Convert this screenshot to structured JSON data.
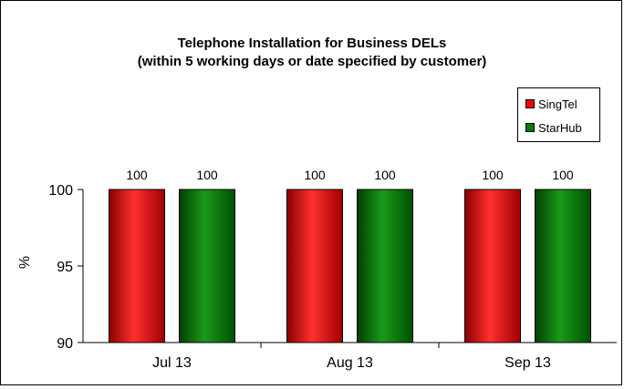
{
  "chart_data": {
    "type": "bar",
    "title": "Telephone Installation for Business DELs",
    "subtitle": "(within 5 working days or date specified by customer)",
    "ylabel": "%",
    "xlabel": "",
    "categories": [
      "Jul 13",
      "Aug 13",
      "Sep 13"
    ],
    "series": [
      {
        "name": "SingTel",
        "values": [
          100,
          100,
          100
        ],
        "color": "#ff0000"
      },
      {
        "name": "StarHub",
        "values": [
          100,
          100,
          100
        ],
        "color": "#008000"
      }
    ],
    "ylim": [
      90,
      100
    ],
    "yticks": [
      90,
      95,
      100
    ],
    "grid": false,
    "legend_position": "top-right"
  }
}
